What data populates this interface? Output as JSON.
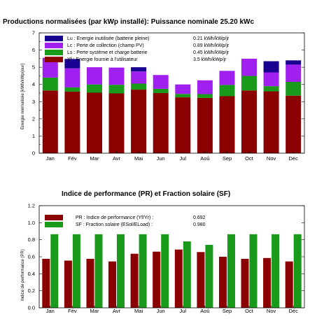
{
  "chart_data": [
    {
      "type": "bar",
      "stacked": true,
      "title": "Productions normalisées   (par kWp installé):   Puissance nominale 25.20 kWc",
      "ylabel": "Energie   normalisée   [kWh/kWp/jour]",
      "ylim": [
        0,
        7
      ],
      "yticks": [
        "0",
        "1",
        "2",
        "3",
        "4",
        "5",
        "6",
        "7"
      ],
      "categories": [
        "Jan",
        "Fév",
        "Mar",
        "Avr",
        "Mai",
        "Jun",
        "Jul",
        "Aoû",
        "Sep",
        "Oct",
        "Nov",
        "Déc"
      ],
      "series": [
        {
          "key": "Yf",
          "color": "#8b0000",
          "values": [
            3.65,
            3.58,
            3.52,
            3.48,
            3.7,
            3.5,
            3.25,
            3.22,
            3.32,
            3.65,
            3.6,
            3.35
          ]
        },
        {
          "key": "Ls",
          "color": "#1a9a1a",
          "values": [
            0.75,
            0.25,
            0.48,
            0.5,
            0.35,
            0.25,
            0.2,
            0.22,
            0.65,
            0.85,
            0.3,
            0.8
          ]
        },
        {
          "key": "Lc",
          "color": "#a020f0",
          "values": [
            1.15,
            1.1,
            1.0,
            1.0,
            0.7,
            0.8,
            0.55,
            0.8,
            0.82,
            1.0,
            0.8,
            1.0
          ]
        },
        {
          "key": "Lu",
          "color": "#1a0090",
          "values": [
            0.0,
            0.55,
            0.0,
            0.0,
            0.25,
            0.0,
            0.0,
            0.0,
            0.0,
            0.0,
            0.65,
            0.25
          ]
        }
      ],
      "legend": [
        {
          "swatch": "#1a0090",
          "label": "Lu : Energie inutilisée (batterie pleine)",
          "value": "0.21 kWh/kWp/jr"
        },
        {
          "swatch": "#a020f0",
          "label": "Lc : Perte de collection (champ PV)",
          "value": "0.89 kWh/kWp/jr"
        },
        {
          "swatch": "#1a9a1a",
          "label": "Ls : Perte système et charge batterie",
          "value": "0.45 kWh/kWp/jr"
        },
        {
          "swatch": "#8b0000",
          "label": "Yf : Energie fournie à l'utilisateur",
          "value": "3.5 kWh/kWp/jr"
        }
      ],
      "legend_placement": "top-left",
      "grid": false
    },
    {
      "type": "bar",
      "grouped": true,
      "title": "Indice de performance (PR)   et Fraction solaire (SF)",
      "ylabel": "Indice de performance (PR)",
      "ylim": [
        0,
        1.2
      ],
      "yticks": [
        "0.0",
        "0.2",
        "0.4",
        "0.6",
        "0.8",
        "1.0",
        "1.2"
      ],
      "categories": [
        "Jan",
        "Fév",
        "Mar",
        "Avr",
        "Mai",
        "Jun",
        "Jul",
        "Aoû",
        "Sep",
        "Oct",
        "Nov",
        "Déc"
      ],
      "series": [
        {
          "key": "PR",
          "color": "#8b0000",
          "values": [
            0.575,
            0.555,
            0.575,
            0.545,
            0.635,
            0.66,
            0.685,
            0.655,
            0.6,
            0.575,
            0.585,
            0.545
          ]
        },
        {
          "key": "SF",
          "color": "#1a9a1a",
          "values": [
            0.865,
            0.865,
            0.865,
            0.865,
            0.865,
            0.865,
            0.78,
            0.74,
            0.865,
            0.865,
            0.865,
            0.865
          ]
        }
      ],
      "legend": [
        {
          "swatch": "#8b0000",
          "label": "PR : Indice de performance  (Yf/Yr) :",
          "value": "0.692"
        },
        {
          "swatch": "#1a9a1a",
          "label": "SF : Fraction solaire  (ESol/ELoad) :",
          "value": "0.980"
        }
      ],
      "legend_placement": "top-left",
      "grid": false
    }
  ]
}
